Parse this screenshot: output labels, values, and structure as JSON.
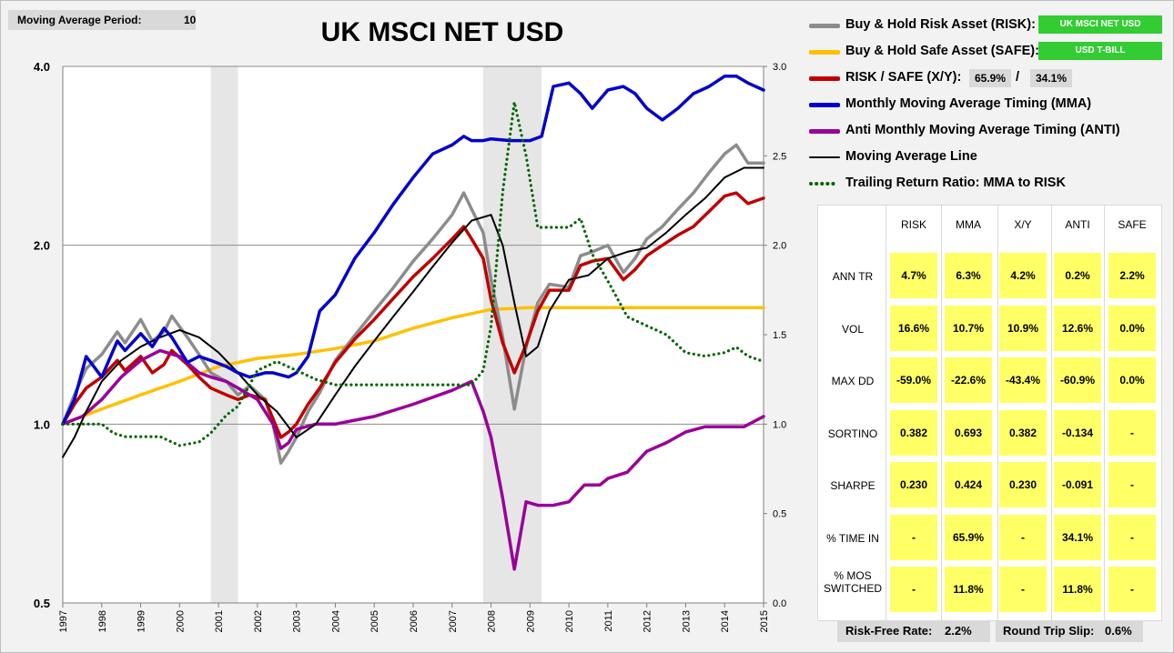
{
  "settings": {
    "period_label": "Moving Average Period:",
    "period_value": "10"
  },
  "chart_data": {
    "type": "line",
    "title": "UK MSCI NET USD",
    "y_left": {
      "scale": "log2",
      "ticks": [
        "4.0",
        "2.0",
        "1.0",
        "0.5"
      ],
      "tick_values": [
        4.0,
        2.0,
        1.0,
        0.5
      ],
      "ylim": [
        0.5,
        4.0
      ]
    },
    "y_right": {
      "ticks": [
        "3.0",
        "2.5",
        "2.0",
        "1.5",
        "1.0",
        "0.5",
        "0.0"
      ],
      "tick_values": [
        3.0,
        2.5,
        2.0,
        1.5,
        1.0,
        0.5,
        0.0
      ],
      "ylim": [
        0.0,
        3.0
      ]
    },
    "x_labels": [
      "1997",
      "1998",
      "1999",
      "2000",
      "2001",
      "2002",
      "2003",
      "2004",
      "2005",
      "2006",
      "2007",
      "2008",
      "2009",
      "2010",
      "2011",
      "2012",
      "2013",
      "2014",
      "2015"
    ],
    "xlim": [
      1997.0,
      2015.0
    ],
    "recessions": [
      [
        2000.8,
        2001.5
      ],
      [
        2007.8,
        2009.3
      ]
    ],
    "grid_y": true,
    "series": [
      {
        "name": "Buy & Hold Risk Asset (RISK):",
        "color": "#8c8c8c",
        "axis": "left",
        "x": [
          1997.0,
          1997.3,
          1997.6,
          1998.0,
          1998.4,
          1998.6,
          1999.0,
          1999.3,
          1999.6,
          1999.8,
          2000.2,
          2000.5,
          2000.8,
          2001.2,
          2001.5,
          2001.8,
          2002.2,
          2002.4,
          2002.6,
          2002.8,
          2003.0,
          2003.3,
          2003.6,
          2004.0,
          2004.5,
          2005.0,
          2005.5,
          2006.0,
          2006.5,
          2007.0,
          2007.3,
          2007.5,
          2007.8,
          2008.0,
          2008.3,
          2008.6,
          2008.9,
          2009.2,
          2009.5,
          2010.0,
          2010.3,
          2010.6,
          2011.0,
          2011.4,
          2011.7,
          2012.0,
          2012.4,
          2012.8,
          2013.2,
          2013.6,
          2014.0,
          2014.3,
          2014.6,
          2015.0
        ],
        "y": [
          1.0,
          1.12,
          1.24,
          1.31,
          1.43,
          1.37,
          1.5,
          1.38,
          1.43,
          1.52,
          1.4,
          1.31,
          1.22,
          1.18,
          1.12,
          1.16,
          1.1,
          1.0,
          0.86,
          0.9,
          0.95,
          1.05,
          1.13,
          1.28,
          1.41,
          1.55,
          1.7,
          1.88,
          2.05,
          2.25,
          2.45,
          2.3,
          2.1,
          1.75,
          1.4,
          1.06,
          1.35,
          1.6,
          1.72,
          1.7,
          1.92,
          1.95,
          2.0,
          1.8,
          1.9,
          2.05,
          2.15,
          2.3,
          2.45,
          2.65,
          2.85,
          2.95,
          2.75,
          2.75
        ]
      },
      {
        "name": "Buy & Hold Safe Asset (SAFE):",
        "color": "#ffc000",
        "axis": "left",
        "x": [
          1997.0,
          1998.0,
          1999.0,
          2000.0,
          2001.0,
          2002.0,
          2003.0,
          2004.0,
          2005.0,
          2006.0,
          2007.0,
          2008.0,
          2009.0,
          2010.0,
          2011.0,
          2012.0,
          2013.0,
          2014.0,
          2015.0
        ],
        "y": [
          1.0,
          1.06,
          1.12,
          1.18,
          1.25,
          1.29,
          1.31,
          1.34,
          1.38,
          1.45,
          1.51,
          1.56,
          1.57,
          1.57,
          1.57,
          1.57,
          1.57,
          1.57,
          1.57
        ]
      },
      {
        "name": "RISK / SAFE (X/Y):",
        "color": "#c00000",
        "axis": "left",
        "x": [
          1997.0,
          1997.3,
          1997.6,
          1998.0,
          1998.4,
          1998.6,
          1999.0,
          1999.3,
          1999.6,
          1999.8,
          2000.2,
          2000.5,
          2000.8,
          2001.2,
          2001.5,
          2001.8,
          2002.2,
          2002.4,
          2002.6,
          2002.8,
          2003.0,
          2003.3,
          2003.6,
          2004.0,
          2004.5,
          2005.0,
          2005.5,
          2006.0,
          2006.5,
          2007.0,
          2007.3,
          2007.5,
          2007.8,
          2008.0,
          2008.3,
          2008.6,
          2008.9,
          2009.2,
          2009.5,
          2010.0,
          2010.3,
          2010.6,
          2011.0,
          2011.4,
          2011.7,
          2012.0,
          2012.4,
          2012.8,
          2013.2,
          2013.6,
          2014.0,
          2014.3,
          2014.6,
          2015.0
        ],
        "y": [
          1.0,
          1.08,
          1.15,
          1.2,
          1.28,
          1.23,
          1.3,
          1.22,
          1.26,
          1.33,
          1.26,
          1.2,
          1.15,
          1.12,
          1.1,
          1.12,
          1.1,
          1.02,
          0.95,
          0.97,
          1.0,
          1.08,
          1.15,
          1.27,
          1.39,
          1.5,
          1.63,
          1.77,
          1.9,
          2.05,
          2.15,
          2.05,
          1.9,
          1.62,
          1.37,
          1.22,
          1.36,
          1.55,
          1.68,
          1.68,
          1.85,
          1.88,
          1.9,
          1.75,
          1.82,
          1.92,
          2.0,
          2.08,
          2.15,
          2.28,
          2.42,
          2.45,
          2.35,
          2.4
        ]
      },
      {
        "name": "Monthly Moving Average Timing (MMA)",
        "color": "#0000cc",
        "axis": "left",
        "x": [
          1997.0,
          1997.3,
          1997.6,
          1998.0,
          1998.4,
          1998.6,
          1999.0,
          1999.3,
          1999.6,
          1999.8,
          2000.2,
          2000.5,
          2000.8,
          2001.2,
          2001.5,
          2001.8,
          2002.2,
          2002.4,
          2002.8,
          2003.0,
          2003.3,
          2003.6,
          2004.0,
          2004.5,
          2005.0,
          2005.5,
          2006.0,
          2006.5,
          2007.0,
          2007.3,
          2007.5,
          2007.8,
          2008.0,
          2008.5,
          2009.0,
          2009.3,
          2009.6,
          2010.0,
          2010.3,
          2010.6,
          2011.0,
          2011.4,
          2011.7,
          2012.0,
          2012.4,
          2012.8,
          2013.2,
          2013.6,
          2014.0,
          2014.3,
          2014.6,
          2015.0
        ],
        "y": [
          1.0,
          1.1,
          1.3,
          1.2,
          1.38,
          1.33,
          1.42,
          1.35,
          1.45,
          1.4,
          1.27,
          1.3,
          1.28,
          1.25,
          1.22,
          1.2,
          1.22,
          1.22,
          1.2,
          1.22,
          1.3,
          1.55,
          1.65,
          1.9,
          2.1,
          2.35,
          2.6,
          2.85,
          2.95,
          3.05,
          3.0,
          3.0,
          3.02,
          3.0,
          3.0,
          3.05,
          3.7,
          3.75,
          3.6,
          3.4,
          3.65,
          3.7,
          3.6,
          3.4,
          3.25,
          3.4,
          3.6,
          3.7,
          3.85,
          3.85,
          3.75,
          3.65
        ]
      },
      {
        "name": "Anti Monthly Moving Average Timing (ANTI)",
        "color": "#990099",
        "axis": "left",
        "x": [
          1997.0,
          1997.5,
          1998.0,
          1998.5,
          1999.0,
          1999.5,
          2000.0,
          2000.5,
          2000.8,
          2001.2,
          2001.5,
          2002.0,
          2002.4,
          2002.6,
          2002.8,
          2003.0,
          2003.5,
          2004.0,
          2005.0,
          2006.0,
          2007.0,
          2007.5,
          2007.8,
          2008.0,
          2008.3,
          2008.6,
          2008.9,
          2009.2,
          2009.6,
          2010.0,
          2010.4,
          2010.8,
          2011.0,
          2011.5,
          2012.0,
          2012.5,
          2013.0,
          2013.5,
          2014.0,
          2014.5,
          2015.0
        ],
        "y": [
          1.0,
          1.03,
          1.1,
          1.2,
          1.28,
          1.33,
          1.3,
          1.22,
          1.2,
          1.18,
          1.15,
          1.1,
          1.0,
          0.91,
          0.93,
          0.98,
          1.0,
          1.0,
          1.03,
          1.08,
          1.14,
          1.18,
          1.05,
          0.95,
          0.75,
          0.57,
          0.74,
          0.73,
          0.73,
          0.74,
          0.79,
          0.79,
          0.81,
          0.83,
          0.9,
          0.93,
          0.97,
          0.99,
          0.99,
          0.99,
          1.03
        ]
      },
      {
        "name": "Moving Average Line",
        "color": "#000000",
        "axis": "left",
        "x": [
          1997.0,
          1997.3,
          1997.6,
          1998.0,
          1998.5,
          1999.0,
          1999.5,
          2000.0,
          2000.5,
          2001.0,
          2001.5,
          2002.0,
          2002.5,
          2003.0,
          2003.5,
          2004.0,
          2004.5,
          2005.0,
          2005.5,
          2006.0,
          2006.5,
          2007.0,
          2007.5,
          2008.0,
          2008.3,
          2008.6,
          2008.9,
          2009.2,
          2009.5,
          2010.0,
          2010.5,
          2011.0,
          2011.5,
          2012.0,
          2012.5,
          2013.0,
          2013.5,
          2014.0,
          2014.5,
          2015.0
        ],
        "y": [
          0.88,
          0.95,
          1.05,
          1.18,
          1.28,
          1.35,
          1.4,
          1.44,
          1.4,
          1.32,
          1.22,
          1.12,
          1.05,
          0.95,
          1.0,
          1.12,
          1.25,
          1.38,
          1.52,
          1.67,
          1.84,
          2.02,
          2.2,
          2.25,
          2.0,
          1.6,
          1.3,
          1.35,
          1.55,
          1.75,
          1.78,
          1.9,
          1.95,
          1.98,
          2.1,
          2.25,
          2.4,
          2.6,
          2.7,
          2.7
        ]
      },
      {
        "name": "Trailing Return Ratio: MMA to RISK",
        "color": "#006600",
        "axis": "right",
        "dotted": true,
        "x": [
          1997.0,
          1997.5,
          1998.0,
          1998.3,
          1998.6,
          1999.0,
          1999.5,
          2000.0,
          2000.5,
          2000.8,
          2001.2,
          2001.5,
          2002.0,
          2002.5,
          2003.0,
          2003.5,
          2004.0,
          2004.5,
          2005.0,
          2005.5,
          2006.0,
          2006.5,
          2007.0,
          2007.5,
          2007.8,
          2008.0,
          2008.3,
          2008.6,
          2008.9,
          2009.2,
          2009.5,
          2010.0,
          2010.3,
          2010.6,
          2011.0,
          2011.5,
          2012.0,
          2012.5,
          2013.0,
          2013.5,
          2014.0,
          2014.3,
          2014.6,
          2015.0
        ],
        "y": [
          1.0,
          1.0,
          1.0,
          0.95,
          0.93,
          0.93,
          0.93,
          0.88,
          0.9,
          0.95,
          1.05,
          1.1,
          1.3,
          1.35,
          1.3,
          1.25,
          1.22,
          1.22,
          1.22,
          1.22,
          1.22,
          1.22,
          1.22,
          1.22,
          1.3,
          1.55,
          2.3,
          2.8,
          2.5,
          2.1,
          2.1,
          2.1,
          2.15,
          1.95,
          1.8,
          1.6,
          1.55,
          1.5,
          1.4,
          1.38,
          1.4,
          1.43,
          1.38,
          1.35
        ]
      }
    ]
  },
  "legend": {
    "risk_label": "Buy & Hold Risk Asset (RISK):",
    "risk_badge": "UK MSCI NET USD",
    "safe_label": "Buy & Hold Safe Asset (SAFE):",
    "safe_badge": "USD T-BILL",
    "xy_label": "RISK / SAFE (X/Y):",
    "xy_risk_pct": "65.9%",
    "xy_sep": "/",
    "xy_safe_pct": "34.1%",
    "mma_label": "Monthly Moving Average Timing (MMA)",
    "anti_label": "Anti Monthly Moving Average Timing (ANTI)",
    "ma_label": "Moving Average Line",
    "ratio_label": "Trailing Return Ratio: MMA to RISK"
  },
  "stats": {
    "headers": [
      "RISK",
      "MMA",
      "X/Y",
      "ANTI",
      "SAFE"
    ],
    "rows": [
      {
        "label": "ANN TR",
        "values": [
          "4.7%",
          "6.3%",
          "4.2%",
          "0.2%",
          "2.2%"
        ]
      },
      {
        "label": "VOL",
        "values": [
          "16.6%",
          "10.7%",
          "10.9%",
          "12.6%",
          "0.0%"
        ]
      },
      {
        "label": "MAX DD",
        "values": [
          "-59.0%",
          "-22.6%",
          "-43.4%",
          "-60.9%",
          "0.0%"
        ]
      },
      {
        "label": "SORTINO",
        "values": [
          "0.382",
          "0.693",
          "0.382",
          "-0.134",
          "-"
        ]
      },
      {
        "label": "SHARPE",
        "values": [
          "0.230",
          "0.424",
          "0.230",
          "-0.091",
          "-"
        ]
      },
      {
        "label": "% TIME IN",
        "values": [
          "-",
          "65.9%",
          "-",
          "34.1%",
          "-"
        ]
      },
      {
        "label": "% MOS SWITCHED",
        "values": [
          "-",
          "11.8%",
          "-",
          "11.8%",
          "-"
        ]
      }
    ]
  },
  "footer": {
    "rf_label": "Risk-Free Rate:",
    "rf_value": "2.2%",
    "slip_label": "Round Trip Slip:",
    "slip_value": "0.6%"
  }
}
